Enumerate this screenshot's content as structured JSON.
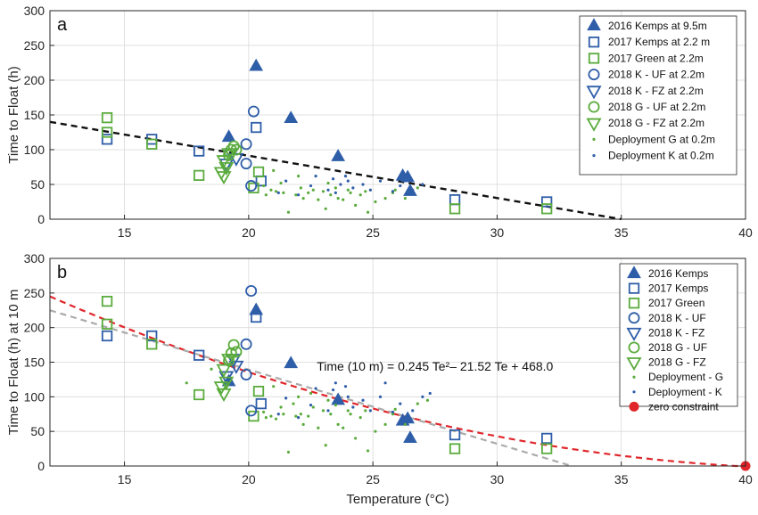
{
  "colors": {
    "blue": "#2f5ea8",
    "green": "#5aab3c",
    "black": "#111111",
    "red": "#e0262a",
    "gray": "#aaaaaa"
  },
  "chart_data": [
    {
      "type": "scatter",
      "panel_label": "a",
      "ylabel": "Time to Float (h)",
      "xlabel": "",
      "xlim": [
        12,
        40
      ],
      "ylim": [
        0,
        300
      ],
      "xticks": [
        15,
        20,
        25,
        30,
        35,
        40
      ],
      "yticks": [
        0,
        50,
        100,
        150,
        200,
        250,
        300
      ],
      "grid": true,
      "legend_position": "top-right",
      "series": [
        {
          "name": "2016 Kemps at 9.5m",
          "marker": "triangle-up",
          "filled": true,
          "color": "#2f5ea8",
          "points": [
            [
              19.2,
              118
            ],
            [
              20.3,
              220
            ],
            [
              21.7,
              145
            ],
            [
              23.6,
              90
            ],
            [
              26.2,
              62
            ],
            [
              26.4,
              60
            ],
            [
              26.5,
              40
            ]
          ]
        },
        {
          "name": "2017 Kemps at 2.2 m",
          "marker": "square",
          "filled": false,
          "color": "#2f5ea8",
          "points": [
            [
              14.3,
              115
            ],
            [
              16.1,
              115
            ],
            [
              18.0,
              98
            ],
            [
              20.3,
              132
            ],
            [
              20.5,
              55
            ],
            [
              28.3,
              28
            ],
            [
              32.0,
              25
            ]
          ]
        },
        {
          "name": "2017 Green at 2.2m",
          "marker": "square",
          "filled": false,
          "color": "#5aab3c",
          "points": [
            [
              14.3,
              146
            ],
            [
              14.3,
              125
            ],
            [
              16.1,
              108
            ],
            [
              18.0,
              63
            ],
            [
              20.2,
              45
            ],
            [
              20.4,
              68
            ],
            [
              28.3,
              15
            ],
            [
              32.0,
              15
            ]
          ]
        },
        {
          "name": "2018 K - UF at 2.2m",
          "marker": "circle",
          "filled": false,
          "color": "#2f5ea8",
          "points": [
            [
              20.2,
              155
            ],
            [
              19.9,
              108
            ],
            [
              19.9,
              80
            ],
            [
              20.1,
              48
            ]
          ]
        },
        {
          "name": "2018 K - FZ at 2.2m",
          "marker": "triangle-down",
          "filled": false,
          "color": "#2f5ea8",
          "points": [
            [
              19.3,
              95
            ],
            [
              19.5,
              88
            ],
            [
              19.1,
              80
            ]
          ]
        },
        {
          "name": "2018 G - UF at 2.2m",
          "marker": "circle",
          "filled": false,
          "color": "#5aab3c",
          "points": [
            [
              19.4,
              105
            ],
            [
              19.3,
              100
            ],
            [
              19.2,
              92
            ],
            [
              19.5,
              100
            ]
          ]
        },
        {
          "name": "2018 G - FZ at 2.2m",
          "marker": "triangle-down",
          "filled": false,
          "color": "#5aab3c",
          "points": [
            [
              19.2,
              95
            ],
            [
              19.0,
              85
            ],
            [
              19.1,
              75
            ],
            [
              18.9,
              68
            ],
            [
              19.0,
              62
            ]
          ]
        },
        {
          "name": "Deployment G at 0.2m",
          "marker": "dot",
          "filled": true,
          "color": "#5aab3c",
          "points": [
            [
              20.6,
              48
            ],
            [
              20.9,
              42
            ],
            [
              21.1,
              40
            ],
            [
              21.3,
              52
            ],
            [
              21.4,
              38
            ],
            [
              21.6,
              10
            ],
            [
              21.9,
              35
            ],
            [
              22.1,
              45
            ],
            [
              22.2,
              30
            ],
            [
              22.4,
              38
            ],
            [
              22.6,
              42
            ],
            [
              22.8,
              28
            ],
            [
              23.0,
              40
            ],
            [
              23.1,
              15
            ],
            [
              23.3,
              35
            ],
            [
              23.5,
              45
            ],
            [
              23.6,
              30
            ],
            [
              23.8,
              28
            ],
            [
              24.0,
              42
            ],
            [
              24.1,
              38
            ],
            [
              24.3,
              20
            ],
            [
              24.5,
              35
            ],
            [
              24.7,
              40
            ],
            [
              25.1,
              25
            ],
            [
              25.5,
              30
            ],
            [
              25.9,
              42
            ],
            [
              26.3,
              30
            ],
            [
              26.8,
              45
            ],
            [
              21.0,
              70
            ],
            [
              20.7,
              35
            ],
            [
              22.0,
              62
            ],
            [
              23.2,
              52
            ],
            [
              24.8,
              10
            ],
            [
              25.8,
              38
            ]
          ]
        },
        {
          "name": "Deployment K at 0.2m",
          "marker": "dot",
          "filled": true,
          "color": "#2f5ea8",
          "points": [
            [
              21.2,
              38
            ],
            [
              21.5,
              55
            ],
            [
              22.0,
              35
            ],
            [
              22.5,
              48
            ],
            [
              23.2,
              42
            ],
            [
              23.4,
              58
            ],
            [
              23.7,
              50
            ],
            [
              24.0,
              55
            ],
            [
              24.2,
              45
            ],
            [
              24.6,
              50
            ],
            [
              24.9,
              42
            ],
            [
              25.3,
              55
            ],
            [
              25.8,
              40
            ],
            [
              26.1,
              48
            ],
            [
              26.6,
              42
            ],
            [
              27.0,
              50
            ],
            [
              22.7,
              62
            ],
            [
              23.9,
              62
            ],
            [
              23.5,
              38
            ]
          ]
        }
      ],
      "fit_lines": [
        {
          "style": "dashed",
          "color": "#111111",
          "points": [
            [
              12,
              140
            ],
            [
              35,
              0
            ]
          ]
        }
      ]
    },
    {
      "type": "scatter",
      "panel_label": "b",
      "ylabel": "Time to Float (h) at 10 m",
      "xlabel": "Temperature (°C)",
      "xlim": [
        12,
        40
      ],
      "ylim": [
        0,
        300
      ],
      "xticks": [
        15,
        20,
        25,
        30,
        35,
        40
      ],
      "yticks": [
        0,
        50,
        100,
        150,
        200,
        250,
        300
      ],
      "grid": true,
      "legend_position": "top-right",
      "annotation": "Time (10 m) = 0.245 Te²– 21.52 Te + 468.0",
      "series": [
        {
          "name": "2016 Kemps",
          "marker": "triangle-up",
          "filled": true,
          "color": "#2f5ea8",
          "points": [
            [
              19.2,
              122
            ],
            [
              20.3,
              225
            ],
            [
              21.7,
              148
            ],
            [
              23.6,
              95
            ],
            [
              26.2,
              65
            ],
            [
              26.4,
              68
            ],
            [
              26.5,
              40
            ]
          ]
        },
        {
          "name": "2017 Kemps",
          "marker": "square",
          "filled": false,
          "color": "#2f5ea8",
          "points": [
            [
              14.3,
              188
            ],
            [
              16.1,
              188
            ],
            [
              18.0,
              160
            ],
            [
              20.3,
              215
            ],
            [
              20.5,
              90
            ],
            [
              28.3,
              45
            ],
            [
              32.0,
              40
            ]
          ]
        },
        {
          "name": "2017 Green",
          "marker": "square",
          "filled": false,
          "color": "#5aab3c",
          "points": [
            [
              14.3,
              238
            ],
            [
              14.3,
              205
            ],
            [
              16.1,
              176
            ],
            [
              18.0,
              103
            ],
            [
              20.2,
              72
            ],
            [
              20.4,
              108
            ],
            [
              28.3,
              25
            ],
            [
              32.0,
              25
            ]
          ]
        },
        {
          "name": "2018 K - UF",
          "marker": "circle",
          "filled": false,
          "color": "#2f5ea8",
          "points": [
            [
              20.1,
              253
            ],
            [
              19.9,
              176
            ],
            [
              19.9,
              132
            ],
            [
              20.1,
              80
            ]
          ]
        },
        {
          "name": "2018 K - FZ",
          "marker": "triangle-down",
          "filled": false,
          "color": "#2f5ea8",
          "points": [
            [
              19.4,
              155
            ],
            [
              19.5,
              145
            ],
            [
              19.1,
              130
            ]
          ]
        },
        {
          "name": "2018 G - UF",
          "marker": "circle",
          "filled": false,
          "color": "#5aab3c",
          "points": [
            [
              19.4,
              175
            ],
            [
              19.3,
              163
            ],
            [
              19.2,
              152
            ],
            [
              19.5,
              165
            ]
          ]
        },
        {
          "name": "2018 G - FZ",
          "marker": "triangle-down",
          "filled": false,
          "color": "#5aab3c",
          "points": [
            [
              19.2,
              155
            ],
            [
              19.0,
              140
            ],
            [
              19.1,
              122
            ],
            [
              18.9,
              115
            ],
            [
              19.0,
              105
            ]
          ]
        },
        {
          "name": "Deployment - G",
          "marker": "dot",
          "filled": true,
          "color": "#5aab3c",
          "points": [
            [
              17.5,
              120
            ],
            [
              18.5,
              140
            ],
            [
              20.6,
              78
            ],
            [
              20.9,
              72
            ],
            [
              21.1,
              68
            ],
            [
              21.3,
              85
            ],
            [
              21.4,
              75
            ],
            [
              21.6,
              20
            ],
            [
              21.9,
              72
            ],
            [
              22.1,
              75
            ],
            [
              22.2,
              60
            ],
            [
              22.4,
              72
            ],
            [
              22.6,
              85
            ],
            [
              22.8,
              55
            ],
            [
              23.0,
              80
            ],
            [
              23.1,
              30
            ],
            [
              23.3,
              75
            ],
            [
              23.5,
              88
            ],
            [
              23.6,
              60
            ],
            [
              23.8,
              55
            ],
            [
              24.0,
              80
            ],
            [
              24.1,
              75
            ],
            [
              24.3,
              40
            ],
            [
              24.5,
              70
            ],
            [
              24.7,
              80
            ],
            [
              25.1,
              50
            ],
            [
              25.5,
              60
            ],
            [
              25.9,
              82
            ],
            [
              26.3,
              60
            ],
            [
              26.8,
              90
            ],
            [
              21.0,
              115
            ],
            [
              20.7,
              70
            ],
            [
              22.0,
              100
            ],
            [
              23.2,
              95
            ],
            [
              24.8,
              22
            ],
            [
              25.8,
              75
            ],
            [
              27.2,
              95
            ],
            [
              22.5,
              105
            ],
            [
              21.8,
              90
            ]
          ]
        },
        {
          "name": "Deployment - K",
          "marker": "dot",
          "filled": true,
          "color": "#2f5ea8",
          "points": [
            [
              21.2,
              75
            ],
            [
              21.5,
              98
            ],
            [
              22.0,
              70
            ],
            [
              22.5,
              88
            ],
            [
              23.2,
              80
            ],
            [
              23.4,
              110
            ],
            [
              23.7,
              95
            ],
            [
              24.0,
              100
            ],
            [
              24.2,
              85
            ],
            [
              24.6,
              95
            ],
            [
              24.9,
              80
            ],
            [
              25.3,
              100
            ],
            [
              25.8,
              78
            ],
            [
              26.1,
              90
            ],
            [
              26.6,
              80
            ],
            [
              27.0,
              100
            ],
            [
              22.7,
              112
            ],
            [
              23.9,
              115
            ],
            [
              23.5,
              120
            ],
            [
              25.5,
              120
            ],
            [
              27.3,
              105
            ]
          ]
        },
        {
          "name": "zero constraint",
          "marker": "dot-large",
          "filled": true,
          "color": "#e0262a",
          "points": [
            [
              40,
              0
            ]
          ]
        }
      ],
      "fit_curves": [
        {
          "style": "dashed",
          "color": "#e0262a",
          "coeffs": [
            0.245,
            -21.52,
            468.0
          ],
          "x_range": [
            12,
            40
          ]
        },
        {
          "style": "dashed",
          "color": "#aaaaaa",
          "points": [
            [
              12,
              225
            ],
            [
              33,
              0
            ]
          ]
        }
      ]
    }
  ]
}
